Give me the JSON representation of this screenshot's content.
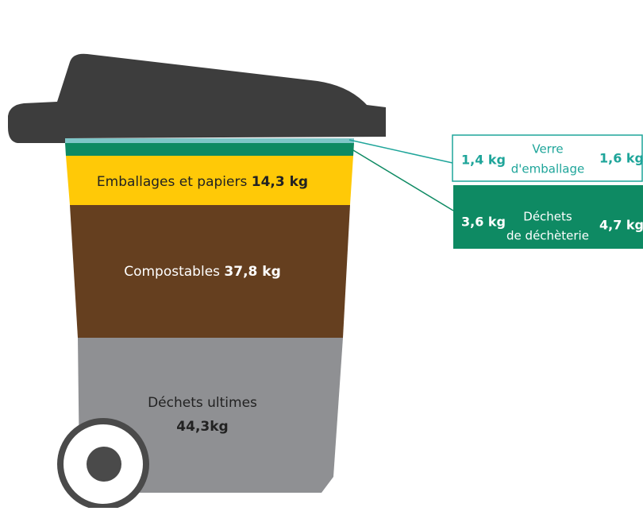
{
  "layers": [
    {
      "label": "Emballages et papiers",
      "weight": "14,3 kg"
    },
    {
      "label": "Compostables",
      "weight": "37,8 kg"
    },
    {
      "label": "Déchets ultimes",
      "weight": "44,3kg"
    }
  ],
  "callouts": [
    {
      "left": "1,4 kg",
      "label_lines": [
        "Verre",
        "d'emballage"
      ],
      "right": "1,6 kg"
    },
    {
      "left": "3,6 kg",
      "label_lines": [
        "Déchets",
        "de déchèterie"
      ],
      "right": "4,7 kg"
    }
  ]
}
